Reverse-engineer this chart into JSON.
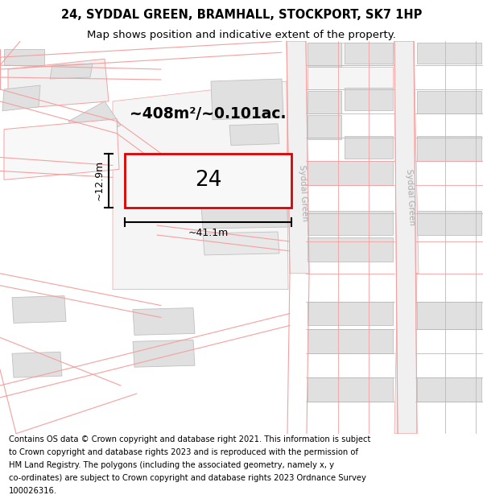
{
  "title_line1": "24, SYDDAL GREEN, BRAMHALL, STOCKPORT, SK7 1HP",
  "title_line2": "Map shows position and indicative extent of the property.",
  "footer_text": "Contains OS data © Crown copyright and database right 2021. This information is subject to Crown copyright and database rights 2023 and is reproduced with the permission of HM Land Registry. The polygons (including the associated geometry, namely x, y co-ordinates) are subject to Crown copyright and database rights 2023 Ordnance Survey 100026316.",
  "area_label": "~408m²/~0.101ac.",
  "width_label": "~41.1m",
  "height_label": "~12.9m",
  "plot_number": "24",
  "road_color": "#f5a0a0",
  "plot_border": "#dd0000",
  "building_fill": "#e0e0e0",
  "building_edge": "#c0c0c0",
  "road_fill": "#f0f0f0",
  "road_label_color": "#aaaaaa",
  "title_fontsize": 10.5,
  "subtitle_fontsize": 9.5,
  "footer_fontsize": 7.2,
  "map_xlim": [
    0,
    600
  ],
  "map_ylim": [
    0,
    490
  ]
}
